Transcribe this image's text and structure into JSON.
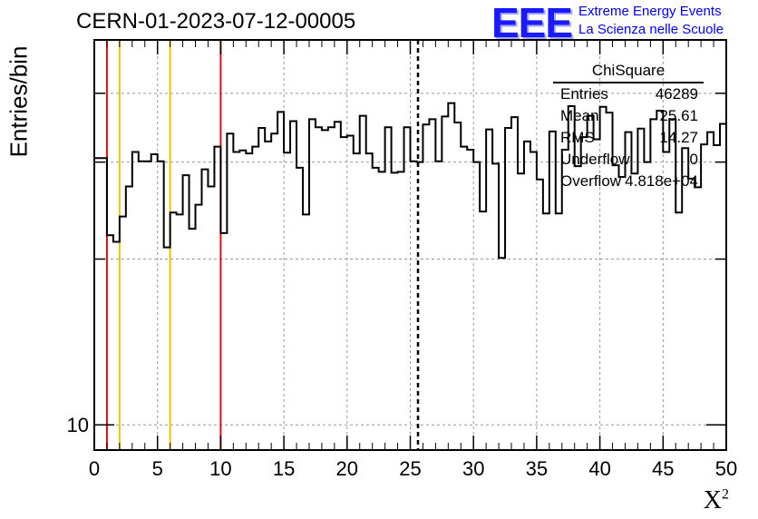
{
  "title": "CERN-01-2023-07-12-00005",
  "logo": {
    "mark": "EEE",
    "line1": "Extreme Energy Events",
    "line2": "La Scienza nelle Scuole"
  },
  "stats_box": {
    "name": "ChiSquare",
    "rows": [
      {
        "label": "Entries",
        "value": "46289"
      },
      {
        "label": "Mean",
        "value": "25.61"
      },
      {
        "label": "RMS",
        "value": "14.27"
      },
      {
        "label": "Underflow",
        "value": "0"
      },
      {
        "label": "Overflow",
        "value": "4.818e+04"
      }
    ]
  },
  "colors": {
    "red": "#dd1111",
    "yellow": "#f2c200",
    "grid": "#999999"
  },
  "chart_data": {
    "type": "histogram",
    "xlabel": "X",
    "xlabel_superscript": "2",
    "ylabel": "Entries/bin",
    "xlim": [
      0,
      50
    ],
    "ylim": [
      9,
      50
    ],
    "yscale": "log",
    "x_ticks": [
      0,
      5,
      10,
      15,
      20,
      25,
      30,
      35,
      40,
      45,
      50
    ],
    "y_tick_labels": [
      {
        "value": 10,
        "label": "10"
      }
    ],
    "grid": true,
    "bin_width": 0.5,
    "bin_values": [
      30.5,
      30.5,
      22.1,
      21.5,
      23.9,
      27.1,
      31.3,
      30.1,
      30.1,
      31.0,
      30.1,
      21.0,
      24.3,
      24.1,
      28.4,
      22.7,
      25.1,
      29.1,
      27.1,
      32.0,
      22.3,
      33.8,
      31.3,
      31.5,
      31.1,
      32.0,
      34.6,
      32.7,
      33.8,
      37.0,
      31.2,
      35.6,
      29.3,
      24.1,
      35.9,
      34.7,
      34.3,
      34.7,
      35.5,
      33.3,
      33.5,
      31.1,
      36.4,
      31.1,
      29.3,
      28.8,
      34.7,
      28.7,
      28.8,
      34.7,
      30.1,
      30.0,
      35.1,
      35.9,
      30.1,
      36.3,
      38.4,
      35.4,
      32.0,
      31.6,
      30.0,
      24.4,
      34.4,
      29.8,
      20.1,
      34.6,
      36.2,
      28.6,
      32.7,
      31.3,
      27.9,
      24.2,
      34.1,
      24.2,
      31.6,
      37.9,
      29.5,
      33.3,
      36.4,
      33.0,
      37.8,
      36.9,
      29.6,
      28.2,
      34.0,
      28.6,
      34.5,
      30.0,
      35.9,
      37.2,
      31.3,
      35.9,
      24.3,
      31.8,
      28.0,
      27.0,
      32.3,
      34.0,
      32.2,
      35.2
    ],
    "vertical_lines": [
      {
        "x": 1,
        "color": "red",
        "style": "solid"
      },
      {
        "x": 2,
        "color": "yellow",
        "style": "solid"
      },
      {
        "x": 6,
        "color": "yellow",
        "style": "solid"
      },
      {
        "x": 10,
        "color": "red",
        "style": "solid"
      },
      {
        "x": 25.61,
        "color": "black",
        "style": "dashed"
      }
    ]
  }
}
